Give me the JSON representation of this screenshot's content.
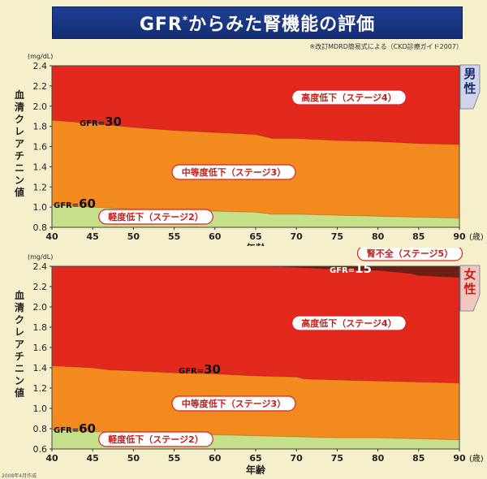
{
  "header": {
    "title": "GFR",
    "title_mark": "*",
    "title_rest": "からみた腎機能の評価",
    "source_note": "※改訂MDRD簡易式による（CKD診療ガイド2007）",
    "footer_note": "2008年4月作成"
  },
  "colors": {
    "severe": "#e3281e",
    "moderate": "#f28a1e",
    "mild": "#c6e08a",
    "failure": "#6e1f14",
    "male_tab": "#cfd4ea",
    "female_tab": "#f3c6c0",
    "label_pill_border": "#d8232a",
    "title_bg": "#1f3f94"
  },
  "chart_data": [
    {
      "type": "area",
      "panel": "male",
      "sex_label": "男性",
      "ylabel": "血清クレアチニン値",
      "yunit": "(mg/dL)",
      "xlabel": "年齢",
      "xunit": "(歳)",
      "xlim": [
        40,
        90
      ],
      "ylim": [
        0.8,
        2.4
      ],
      "xticks": [
        "40",
        "45",
        "50",
        "55",
        "60",
        "65",
        "70",
        "75",
        "80",
        "85",
        "90"
      ],
      "yticks": [
        "0.8",
        "1.0",
        "1.2",
        "1.4",
        "1.6",
        "1.8",
        "2.0",
        "2.2",
        "2.4"
      ],
      "series": [
        {
          "name": "GFR=60",
          "x": [
            40,
            45,
            50,
            55,
            60,
            65,
            67,
            70,
            75,
            80,
            85,
            90
          ],
          "y": [
            1.02,
            1.0,
            0.98,
            0.97,
            0.96,
            0.95,
            0.93,
            0.93,
            0.92,
            0.91,
            0.9,
            0.89
          ]
        },
        {
          "name": "GFR=30",
          "x": [
            40,
            45,
            50,
            55,
            60,
            65,
            67,
            70,
            75,
            80,
            85,
            90
          ],
          "y": [
            1.86,
            1.83,
            1.79,
            1.76,
            1.74,
            1.72,
            1.68,
            1.68,
            1.66,
            1.65,
            1.63,
            1.62
          ]
        }
      ],
      "zones": [
        {
          "label": "高度低下（ステージ4）"
        },
        {
          "label": "中等度低下（ステージ3）"
        },
        {
          "label": "軽度低下（ステージ2）"
        }
      ]
    },
    {
      "type": "area",
      "panel": "female",
      "sex_label": "女性",
      "ylabel": "血清クレアチニン値",
      "yunit": "(mg/dL)",
      "xlabel": "年齢",
      "xunit": "(歳)",
      "xlim": [
        40,
        90
      ],
      "ylim": [
        0.6,
        2.4
      ],
      "xticks": [
        "40",
        "45",
        "50",
        "55",
        "60",
        "65",
        "70",
        "75",
        "80",
        "85",
        "90"
      ],
      "yticks": [
        "0.6",
        "0.8",
        "1.0",
        "1.2",
        "1.4",
        "1.6",
        "1.8",
        "2.0",
        "2.2",
        "2.4"
      ],
      "series": [
        {
          "name": "GFR=60",
          "x": [
            40,
            45,
            50,
            55,
            60,
            65,
            70,
            75,
            80,
            85,
            90
          ],
          "y": [
            0.79,
            0.77,
            0.76,
            0.75,
            0.74,
            0.73,
            0.72,
            0.71,
            0.71,
            0.7,
            0.69
          ]
        },
        {
          "name": "GFR=30",
          "x": [
            40,
            45,
            47,
            50,
            55,
            60,
            65,
            70,
            71,
            75,
            80,
            85,
            90
          ],
          "y": [
            1.42,
            1.4,
            1.38,
            1.37,
            1.35,
            1.34,
            1.32,
            1.31,
            1.29,
            1.28,
            1.27,
            1.26,
            1.25
          ]
        },
        {
          "name": "GFR=15",
          "x": [
            67,
            70,
            75,
            80,
            84,
            85,
            90
          ],
          "y": [
            2.4,
            2.39,
            2.37,
            2.36,
            2.33,
            2.31,
            2.29
          ]
        }
      ],
      "zones": [
        {
          "label": "腎不全（ステージ5）"
        },
        {
          "label": "高度低下（ステージ4）"
        },
        {
          "label": "中等度低下（ステージ3）"
        },
        {
          "label": "軽度低下（ステージ2）"
        }
      ]
    }
  ]
}
